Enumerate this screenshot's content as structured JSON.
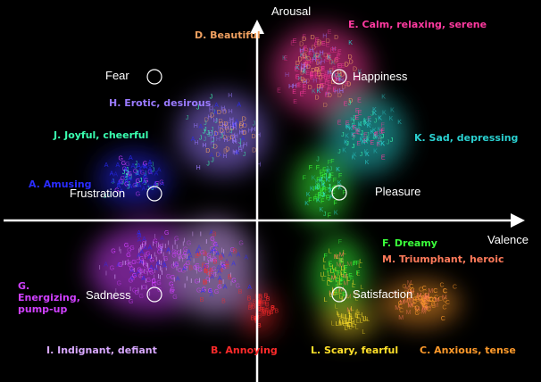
{
  "axes": {
    "x_label": "Valence",
    "y_label": "Arousal"
  },
  "emotions": [
    {
      "id": "fear",
      "label": "Fear"
    },
    {
      "id": "happiness",
      "label": "Happiness"
    },
    {
      "id": "frustration",
      "label": "Frustration"
    },
    {
      "id": "pleasure",
      "label": "Pleasure"
    },
    {
      "id": "sadness",
      "label": "Sadness"
    },
    {
      "id": "satisfaction",
      "label": "Satisfaction"
    }
  ],
  "clusters": [
    {
      "id": "A",
      "label": "A. Amusing",
      "color": "#2a2cff"
    },
    {
      "id": "B",
      "label": "B. Annoying",
      "color": "#ff2a2a"
    },
    {
      "id": "C",
      "label": "C. Anxious, tense",
      "color": "#ff9a2a"
    },
    {
      "id": "D",
      "label": "D. Beautiful",
      "color": "#f0a060"
    },
    {
      "id": "E",
      "label": "E. Calm, relaxing, serene",
      "color": "#ff3aa0"
    },
    {
      "id": "F",
      "label": "F. Dreamy",
      "color": "#3aff3a"
    },
    {
      "id": "G",
      "label": "G. Energizing, pump-up",
      "color": "#d040ff"
    },
    {
      "id": "H",
      "label": "H. Erotic, desirous",
      "color": "#9a7aff"
    },
    {
      "id": "I",
      "label": "I. Indignant, defiant",
      "color": "#d8a8ff"
    },
    {
      "id": "J",
      "label": "J. Joyful, cheerful",
      "color": "#3affb0"
    },
    {
      "id": "K",
      "label": "K. Sad, depressing",
      "color": "#2acfcf"
    },
    {
      "id": "L",
      "label": "L. Scary, fearful",
      "color": "#ffe02a"
    },
    {
      "id": "M",
      "label": "M. Triumphant, heroic",
      "color": "#ff7a5a"
    }
  ]
}
